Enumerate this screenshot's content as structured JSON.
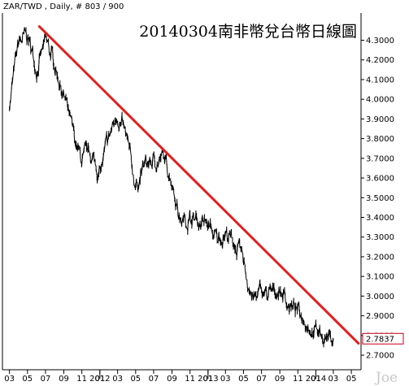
{
  "header": {
    "symbol_line": "ZAR/TWD , Daily, # 803 / 900"
  },
  "watermark": "Joe",
  "colors": {
    "price": "#000000",
    "trendline": "#e41e1e",
    "last_box": "#c4001a",
    "axis": "#000000",
    "background": "#ffffff"
  },
  "chart_data": {
    "type": "line",
    "title": "20140304南非幣兌台幣日線圖",
    "series": [
      {
        "x": [
          "2011-03-01",
          "2011-04-01",
          "2011-05-01",
          "2011-06-01",
          "2011-07-01",
          "2011-08-01",
          "2011-09-01",
          "2011-10-01",
          "2011-11-01",
          "2011-12-01",
          "2012-01-01",
          "2012-02-01",
          "2012-03-01",
          "2012-04-01",
          "2012-05-01",
          "2012-06-01",
          "2012-07-01",
          "2012-08-01",
          "2012-09-01",
          "2012-10-01",
          "2012-11-01",
          "2012-12-01",
          "2013-01-01",
          "2013-02-01",
          "2013-03-01",
          "2013-04-01",
          "2013-05-01",
          "2013-06-01",
          "2013-07-01",
          "2013-08-01",
          "2013-09-01",
          "2013-10-01",
          "2013-11-01",
          "2013-12-01",
          "2014-01-01",
          "2014-02-01",
          "2014-03-01"
        ],
        "y": [
          3.98,
          4.28,
          4.32,
          4.16,
          4.28,
          4.18,
          4.02,
          3.82,
          3.68,
          3.72,
          3.62,
          3.8,
          3.93,
          3.78,
          3.56,
          3.66,
          3.68,
          3.7,
          3.6,
          3.38,
          3.4,
          3.38,
          3.36,
          3.28,
          3.33,
          3.26,
          3.17,
          2.98,
          3.02,
          3.0,
          3.04,
          2.96,
          2.92,
          2.88,
          2.82,
          2.8,
          2.7837
        ]
      }
    ],
    "trendline": {
      "x": [
        "2011-06-10",
        "2014-05-25"
      ],
      "y": [
        4.37,
        2.76
      ]
    },
    "y_ticks": [
      "4.3000",
      "4.2000",
      "4.1000",
      "4.0000",
      "3.9000",
      "3.8000",
      "3.7000",
      "3.6000",
      "3.5000",
      "3.4000",
      "3.3000",
      "3.2000",
      "3.1000",
      "3.0000",
      "2.9000",
      "2.8000",
      "2.7000"
    ],
    "x_ticks": [
      {
        "date": "2011-03-01",
        "label": "03"
      },
      {
        "date": "2011-05-01",
        "label": "05"
      },
      {
        "date": "2011-07-01",
        "label": "07"
      },
      {
        "date": "2011-09-01",
        "label": "09"
      },
      {
        "date": "2011-11-01",
        "label": "11"
      },
      {
        "date": "2012-01-01",
        "label": "01"
      },
      {
        "date": "2012-03-01",
        "label": "03"
      },
      {
        "date": "2012-05-01",
        "label": "05"
      },
      {
        "date": "2012-07-01",
        "label": "07"
      },
      {
        "date": "2012-09-01",
        "label": "09"
      },
      {
        "date": "2012-11-01",
        "label": "11"
      },
      {
        "date": "2013-01-01",
        "label": "01"
      },
      {
        "date": "2013-03-01",
        "label": "03"
      },
      {
        "date": "2013-05-01",
        "label": "05"
      },
      {
        "date": "2013-07-01",
        "label": "07"
      },
      {
        "date": "2013-09-01",
        "label": "09"
      },
      {
        "date": "2013-11-01",
        "label": "11"
      },
      {
        "date": "2014-01-01",
        "label": "01"
      },
      {
        "date": "2014-03-01",
        "label": "03"
      },
      {
        "date": "2014-05-01",
        "label": "05"
      }
    ],
    "year_labels": [
      {
        "date": "2012-01-01",
        "label": "2012"
      },
      {
        "date": "2013-01-01",
        "label": "2013"
      },
      {
        "date": "2014-01-01",
        "label": "2014"
      }
    ],
    "x_range": [
      "2011-02-08",
      "2014-05-31"
    ],
    "ylim": [
      2.63,
      4.43
    ],
    "last_value": "2.7837",
    "xlabel": "",
    "ylabel": "",
    "grid": false,
    "legend": "none"
  }
}
